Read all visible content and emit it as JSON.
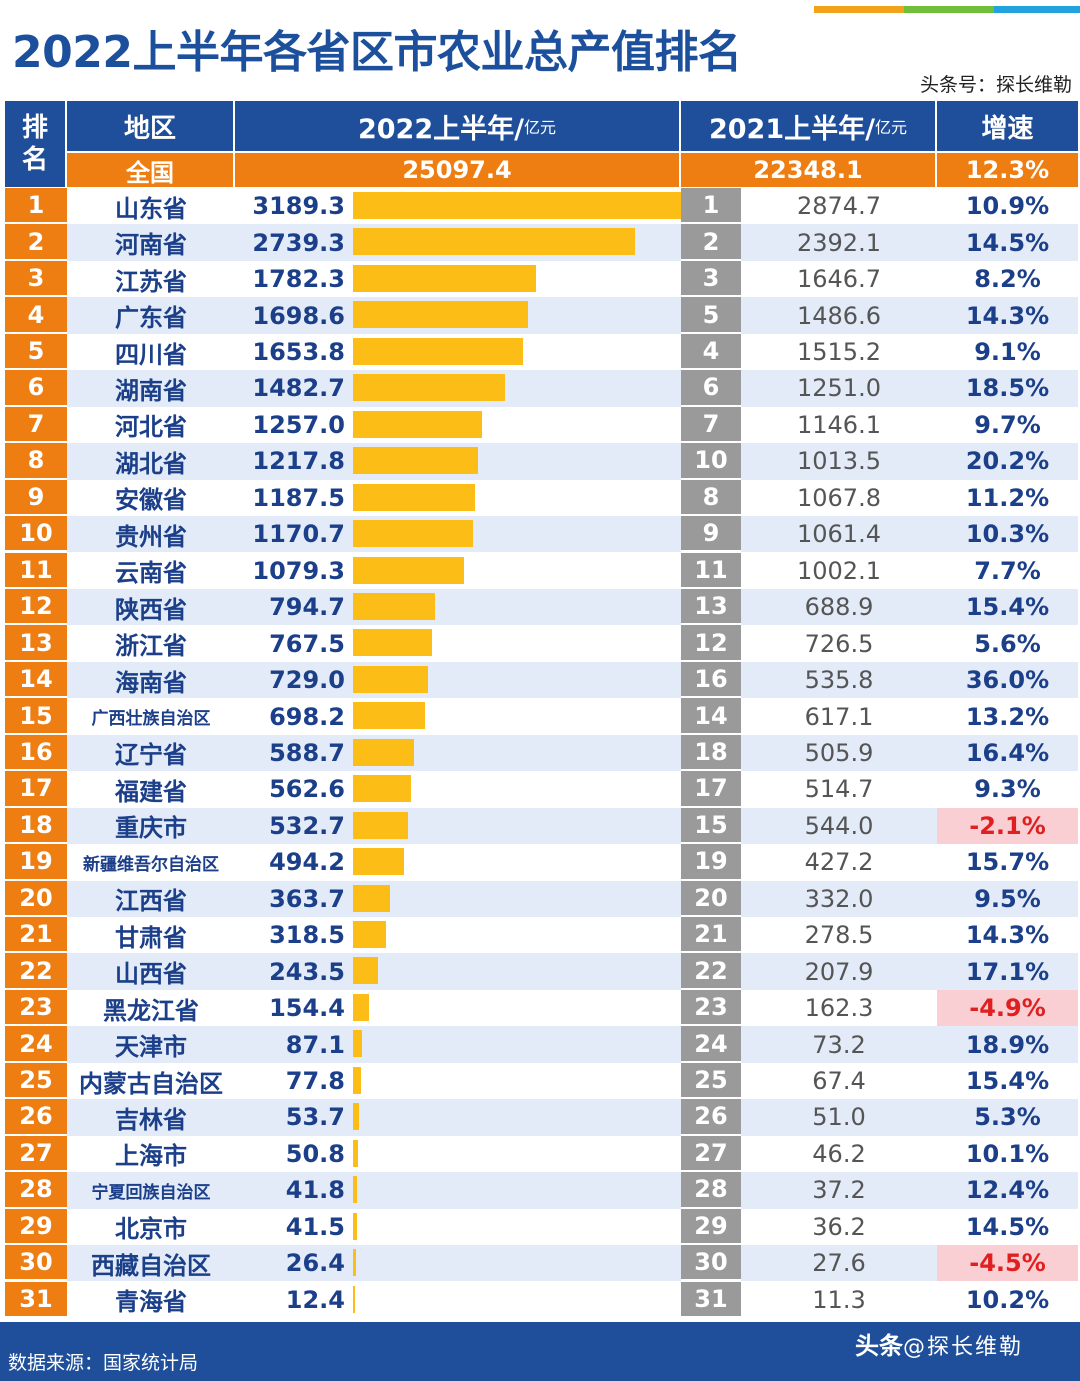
{
  "header": {
    "title": "2022上半年各省区市农业总产值排名",
    "author": "头条号：探长维勒",
    "col_rank_line1": "排",
    "col_rank_line2": "名",
    "col_region": "地区",
    "col_2022": "2022上半年/",
    "col_2022_unit": "亿元",
    "col_2021": "2021上半年/",
    "col_2021_unit": "亿元",
    "col_growth": "增速",
    "accent_colors": [
      "#f2a21a",
      "#6fbf3b",
      "#22a3dd"
    ]
  },
  "total": {
    "label": "全国",
    "value_2022": "25097.4",
    "value_2021": "22348.1",
    "growth": "12.3%"
  },
  "chart_data": {
    "type": "bar",
    "title": "2022上半年各省区市农业总产值排名",
    "xlabel": "",
    "ylabel": "2022上半年/亿元",
    "xlim": [
      0,
      3189.3
    ],
    "rows": [
      {
        "rank": "1",
        "region": "山东省",
        "v2022": "3189.3",
        "rank2021": "1",
        "v2021": "2874.7",
        "growth": "10.9%",
        "neg": false
      },
      {
        "rank": "2",
        "region": "河南省",
        "v2022": "2739.3",
        "rank2021": "2",
        "v2021": "2392.1",
        "growth": "14.5%",
        "neg": false
      },
      {
        "rank": "3",
        "region": "江苏省",
        "v2022": "1782.3",
        "rank2021": "3",
        "v2021": "1646.7",
        "growth": "8.2%",
        "neg": false
      },
      {
        "rank": "4",
        "region": "广东省",
        "v2022": "1698.6",
        "rank2021": "5",
        "v2021": "1486.6",
        "growth": "14.3%",
        "neg": false
      },
      {
        "rank": "5",
        "region": "四川省",
        "v2022": "1653.8",
        "rank2021": "4",
        "v2021": "1515.2",
        "growth": "9.1%",
        "neg": false
      },
      {
        "rank": "6",
        "region": "湖南省",
        "v2022": "1482.7",
        "rank2021": "6",
        "v2021": "1251.0",
        "growth": "18.5%",
        "neg": false
      },
      {
        "rank": "7",
        "region": "河北省",
        "v2022": "1257.0",
        "rank2021": "7",
        "v2021": "1146.1",
        "growth": "9.7%",
        "neg": false
      },
      {
        "rank": "8",
        "region": "湖北省",
        "v2022": "1217.8",
        "rank2021": "10",
        "v2021": "1013.5",
        "growth": "20.2%",
        "neg": false
      },
      {
        "rank": "9",
        "region": "安徽省",
        "v2022": "1187.5",
        "rank2021": "8",
        "v2021": "1067.8",
        "growth": "11.2%",
        "neg": false
      },
      {
        "rank": "10",
        "region": "贵州省",
        "v2022": "1170.7",
        "rank2021": "9",
        "v2021": "1061.4",
        "growth": "10.3%",
        "neg": false
      },
      {
        "rank": "11",
        "region": "云南省",
        "v2022": "1079.3",
        "rank2021": "11",
        "v2021": "1002.1",
        "growth": "7.7%",
        "neg": false
      },
      {
        "rank": "12",
        "region": "陕西省",
        "v2022": "794.7",
        "rank2021": "13",
        "v2021": "688.9",
        "growth": "15.4%",
        "neg": false
      },
      {
        "rank": "13",
        "region": "浙江省",
        "v2022": "767.5",
        "rank2021": "12",
        "v2021": "726.5",
        "growth": "5.6%",
        "neg": false
      },
      {
        "rank": "14",
        "region": "海南省",
        "v2022": "729.0",
        "rank2021": "16",
        "v2021": "535.8",
        "growth": "36.0%",
        "neg": false
      },
      {
        "rank": "15",
        "region": "广西壮族自治区",
        "v2022": "698.2",
        "rank2021": "14",
        "v2021": "617.1",
        "growth": "13.2%",
        "neg": false
      },
      {
        "rank": "16",
        "region": "辽宁省",
        "v2022": "588.7",
        "rank2021": "18",
        "v2021": "505.9",
        "growth": "16.4%",
        "neg": false
      },
      {
        "rank": "17",
        "region": "福建省",
        "v2022": "562.6",
        "rank2021": "17",
        "v2021": "514.7",
        "growth": "9.3%",
        "neg": false
      },
      {
        "rank": "18",
        "region": "重庆市",
        "v2022": "532.7",
        "rank2021": "15",
        "v2021": "544.0",
        "growth": "-2.1%",
        "neg": true
      },
      {
        "rank": "19",
        "region": "新疆维吾尔自治区",
        "v2022": "494.2",
        "rank2021": "19",
        "v2021": "427.2",
        "growth": "15.7%",
        "neg": false
      },
      {
        "rank": "20",
        "region": "江西省",
        "v2022": "363.7",
        "rank2021": "20",
        "v2021": "332.0",
        "growth": "9.5%",
        "neg": false
      },
      {
        "rank": "21",
        "region": "甘肃省",
        "v2022": "318.5",
        "rank2021": "21",
        "v2021": "278.5",
        "growth": "14.3%",
        "neg": false
      },
      {
        "rank": "22",
        "region": "山西省",
        "v2022": "243.5",
        "rank2021": "22",
        "v2021": "207.9",
        "growth": "17.1%",
        "neg": false
      },
      {
        "rank": "23",
        "region": "黑龙江省",
        "v2022": "154.4",
        "rank2021": "23",
        "v2021": "162.3",
        "growth": "-4.9%",
        "neg": true
      },
      {
        "rank": "24",
        "region": "天津市",
        "v2022": "87.1",
        "rank2021": "24",
        "v2021": "73.2",
        "growth": "18.9%",
        "neg": false
      },
      {
        "rank": "25",
        "region": "内蒙古自治区",
        "v2022": "77.8",
        "rank2021": "25",
        "v2021": "67.4",
        "growth": "15.4%",
        "neg": false
      },
      {
        "rank": "26",
        "region": "吉林省",
        "v2022": "53.7",
        "rank2021": "26",
        "v2021": "51.0",
        "growth": "5.3%",
        "neg": false
      },
      {
        "rank": "27",
        "region": "上海市",
        "v2022": "50.8",
        "rank2021": "27",
        "v2021": "46.2",
        "growth": "10.1%",
        "neg": false
      },
      {
        "rank": "28",
        "region": "宁夏回族自治区",
        "v2022": "41.8",
        "rank2021": "28",
        "v2021": "37.2",
        "growth": "12.4%",
        "neg": false
      },
      {
        "rank": "29",
        "region": "北京市",
        "v2022": "41.5",
        "rank2021": "29",
        "v2021": "36.2",
        "growth": "14.5%",
        "neg": false
      },
      {
        "rank": "30",
        "region": "西藏自治区",
        "v2022": "26.4",
        "rank2021": "30",
        "v2021": "27.6",
        "growth": "-4.5%",
        "neg": true
      },
      {
        "rank": "31",
        "region": "青海省",
        "v2022": "12.4",
        "rank2021": "31",
        "v2021": "11.3",
        "growth": "10.2%",
        "neg": false
      }
    ]
  },
  "footer": {
    "source": "数据来源：国家统计局",
    "logo": "头条",
    "logo_suffix": "@探长维勒"
  }
}
